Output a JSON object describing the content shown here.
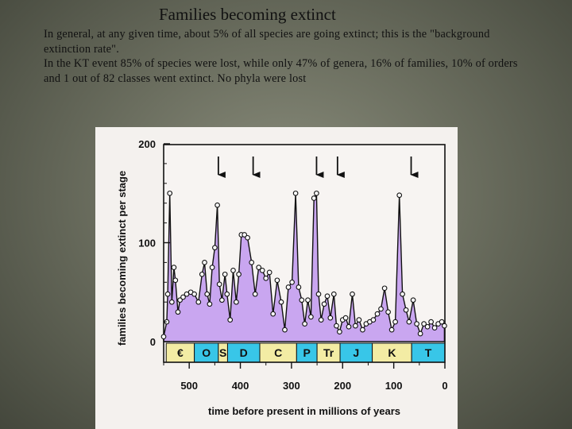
{
  "slide": {
    "title": "Families becoming extinct",
    "paragraph1": "In general, at any given time, about 5% of all species are going extinct; this is the \"background extinction rate\".",
    "paragraph2": "In the KT event 85% of species were lost, while only 47% of genera, 16% of families, 10% of orders and 1 out of 82 classes went extinct. No phyla were lost"
  },
  "chart_data": {
    "type": "area",
    "xlabel": "time before present in millions of years",
    "ylabel": "families becoming extinct per stage",
    "xlim": [
      550,
      0
    ],
    "ylim": [
      0,
      200
    ],
    "x_ticks": [
      "500",
      "400",
      "300",
      "200",
      "100",
      "0"
    ],
    "y_ticks": [
      "200",
      "100",
      "0"
    ],
    "fill_color": "#c9a6f0",
    "period_colors": [
      "#f3eca4",
      "#38c6e8"
    ],
    "periods": [
      {
        "label": "€",
        "start": 545,
        "end": 490
      },
      {
        "label": "O",
        "start": 490,
        "end": 443
      },
      {
        "label": "S",
        "start": 443,
        "end": 425
      },
      {
        "label": "D",
        "start": 425,
        "end": 362
      },
      {
        "label": "C",
        "start": 362,
        "end": 290
      },
      {
        "label": "P",
        "start": 290,
        "end": 250
      },
      {
        "label": "Tr",
        "start": 250,
        "end": 205
      },
      {
        "label": "J",
        "start": 205,
        "end": 142
      },
      {
        "label": "K",
        "start": 142,
        "end": 65
      },
      {
        "label": "T",
        "start": 65,
        "end": 0
      }
    ],
    "extinction_arrows_x": [
      443,
      375,
      251,
      210,
      66
    ],
    "series": [
      {
        "points": [
          [
            550,
            5
          ],
          [
            544,
            20
          ],
          [
            542,
            48
          ],
          [
            538,
            150
          ],
          [
            534,
            40
          ],
          [
            530,
            75
          ],
          [
            527,
            62
          ],
          [
            522,
            30
          ],
          [
            518,
            42
          ],
          [
            512,
            45
          ],
          [
            505,
            48
          ],
          [
            497,
            50
          ],
          [
            490,
            48
          ],
          [
            482,
            40
          ],
          [
            475,
            68
          ],
          [
            470,
            80
          ],
          [
            465,
            48
          ],
          [
            460,
            38
          ],
          [
            455,
            75
          ],
          [
            450,
            95
          ],
          [
            445,
            138
          ],
          [
            441,
            58
          ],
          [
            436,
            42
          ],
          [
            430,
            68
          ],
          [
            426,
            48
          ],
          [
            420,
            22
          ],
          [
            414,
            72
          ],
          [
            408,
            40
          ],
          [
            403,
            68
          ],
          [
            398,
            108
          ],
          [
            392,
            108
          ],
          [
            386,
            105
          ],
          [
            378,
            80
          ],
          [
            371,
            48
          ],
          [
            364,
            75
          ],
          [
            357,
            72
          ],
          [
            350,
            64
          ],
          [
            343,
            70
          ],
          [
            336,
            28
          ],
          [
            328,
            62
          ],
          [
            320,
            40
          ],
          [
            313,
            12
          ],
          [
            306,
            55
          ],
          [
            299,
            60
          ],
          [
            292,
            150
          ],
          [
            286,
            55
          ],
          [
            280,
            42
          ],
          [
            274,
            18
          ],
          [
            268,
            42
          ],
          [
            262,
            25
          ],
          [
            256,
            145
          ],
          [
            251,
            150
          ],
          [
            247,
            48
          ],
          [
            242,
            22
          ],
          [
            236,
            38
          ],
          [
            230,
            46
          ],
          [
            224,
            24
          ],
          [
            217,
            48
          ],
          [
            212,
            16
          ],
          [
            206,
            10
          ],
          [
            200,
            22
          ],
          [
            194,
            24
          ],
          [
            188,
            15
          ],
          [
            181,
            48
          ],
          [
            175,
            16
          ],
          [
            168,
            22
          ],
          [
            161,
            12
          ],
          [
            154,
            18
          ],
          [
            147,
            20
          ],
          [
            140,
            22
          ],
          [
            132,
            28
          ],
          [
            125,
            33
          ],
          [
            118,
            54
          ],
          [
            111,
            30
          ],
          [
            104,
            12
          ],
          [
            97,
            20
          ],
          [
            89,
            148
          ],
          [
            83,
            48
          ],
          [
            76,
            32
          ],
          [
            70,
            20
          ],
          [
            62,
            42
          ],
          [
            55,
            18
          ],
          [
            48,
            8
          ],
          [
            41,
            18
          ],
          [
            34,
            15
          ],
          [
            27,
            20
          ],
          [
            20,
            14
          ],
          [
            13,
            18
          ],
          [
            6,
            20
          ],
          [
            1,
            16
          ]
        ]
      }
    ]
  }
}
